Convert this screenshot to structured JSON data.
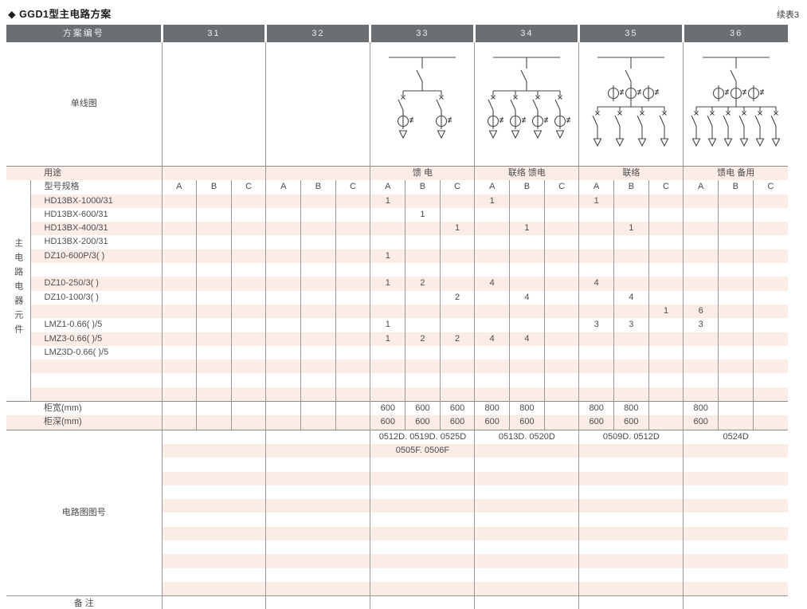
{
  "page": {
    "title": "◆ GGD1型主电路方案",
    "continuation_note": "续表3"
  },
  "table": {
    "header": {
      "scheme_label": "方案编号",
      "schemes": [
        "31",
        "32",
        "33",
        "34",
        "35",
        "36"
      ]
    },
    "diagram_row": {
      "label": "单线图"
    },
    "single_line_diagrams": [
      {
        "scheme": "31",
        "present": false,
        "branches": 0,
        "ct_per_branch": false,
        "ct_bank": 0
      },
      {
        "scheme": "32",
        "present": false,
        "branches": 0,
        "ct_per_branch": false,
        "ct_bank": 0
      },
      {
        "scheme": "33",
        "present": true,
        "branches": 2,
        "ct_per_branch": true,
        "ct_bank": 0
      },
      {
        "scheme": "34",
        "present": true,
        "branches": 4,
        "ct_per_branch": true,
        "ct_bank": 0
      },
      {
        "scheme": "35",
        "present": true,
        "branches": 4,
        "ct_per_branch": false,
        "ct_bank": 3
      },
      {
        "scheme": "36",
        "present": true,
        "branches": 6,
        "ct_per_branch": false,
        "ct_bank": 3
      }
    ],
    "usage_row": {
      "label": "用途",
      "values": [
        "",
        "",
        "馈 电",
        "联络 馈电",
        "联络",
        "馈电 备用"
      ]
    },
    "spec_header_row": {
      "label": "型号规格",
      "subcolumns": [
        "A",
        "B",
        "C"
      ]
    },
    "component_group_label": "主电路电器元件",
    "component_rows": [
      {
        "label": "HD13BX-1000/31",
        "values": [
          "",
          "",
          "",
          "",
          "",
          "",
          "1",
          "",
          "",
          "1",
          "",
          "",
          "1",
          "",
          "",
          "",
          "",
          ""
        ]
      },
      {
        "label": "HD13BX-600/31",
        "values": [
          "",
          "",
          "",
          "",
          "",
          "",
          "",
          "1",
          "",
          "",
          "",
          "",
          "",
          "",
          "",
          "",
          "",
          ""
        ]
      },
      {
        "label": "HD13BX-400/31",
        "values": [
          "",
          "",
          "",
          "",
          "",
          "",
          "",
          "",
          "1",
          "",
          "1",
          "",
          "",
          "1",
          "",
          "",
          "",
          ""
        ]
      },
      {
        "label": "HD13BX-200/31",
        "values": [
          "",
          "",
          "",
          "",
          "",
          "",
          "",
          "",
          "",
          "",
          "",
          "",
          "",
          "",
          "",
          "",
          "",
          ""
        ]
      },
      {
        "label": "DZ10-600P/3( )",
        "values": [
          "",
          "",
          "",
          "",
          "",
          "",
          "1",
          "",
          "",
          "",
          "",
          "",
          "",
          "",
          "",
          "",
          "",
          ""
        ]
      },
      {
        "label": "",
        "values": [
          "",
          "",
          "",
          "",
          "",
          "",
          "",
          "",
          "",
          "",
          "",
          "",
          "",
          "",
          "",
          "",
          "",
          ""
        ]
      },
      {
        "label": "DZ10-250/3( )",
        "values": [
          "",
          "",
          "",
          "",
          "",
          "",
          "1",
          "2",
          "",
          "4",
          "",
          "",
          "4",
          "",
          "",
          "",
          "",
          ""
        ]
      },
      {
        "label": "DZ10-100/3( )",
        "values": [
          "",
          "",
          "",
          "",
          "",
          "",
          "",
          "",
          "2",
          "",
          "4",
          "",
          "",
          "4",
          "",
          "",
          "",
          ""
        ]
      },
      {
        "label": "",
        "values": [
          "",
          "",
          "",
          "",
          "",
          "",
          "",
          "",
          "",
          "",
          "",
          "",
          "",
          "",
          "1",
          "6",
          "",
          ""
        ]
      },
      {
        "label": "LMZ1-0.66( )/5",
        "values": [
          "",
          "",
          "",
          "",
          "",
          "",
          "1",
          "",
          "",
          "",
          "",
          "",
          "3",
          "3",
          "",
          "3",
          "",
          ""
        ]
      },
      {
        "label": "LMZ3-0.66( )/5",
        "values": [
          "",
          "",
          "",
          "",
          "",
          "",
          "1",
          "2",
          "2",
          "4",
          "4",
          "",
          "",
          "",
          "",
          "",
          "",
          ""
        ]
      },
      {
        "label": "LMZ3D-0.66( )/5",
        "values": [
          "",
          "",
          "",
          "",
          "",
          "",
          "",
          "",
          "",
          "",
          "",
          "",
          "",
          "",
          "",
          "",
          "",
          ""
        ]
      },
      {
        "label": "",
        "values": [
          "",
          "",
          "",
          "",
          "",
          "",
          "",
          "",
          "",
          "",
          "",
          "",
          "",
          "",
          "",
          "",
          "",
          ""
        ]
      },
      {
        "label": "",
        "values": [
          "",
          "",
          "",
          "",
          "",
          "",
          "",
          "",
          "",
          "",
          "",
          "",
          "",
          "",
          "",
          "",
          "",
          ""
        ]
      },
      {
        "label": "",
        "values": [
          "",
          "",
          "",
          "",
          "",
          "",
          "",
          "",
          "",
          "",
          "",
          "",
          "",
          "",
          "",
          "",
          "",
          ""
        ]
      }
    ],
    "cabinet_width_row": {
      "label": "柜宽(mm)",
      "values": [
        "",
        "",
        "",
        "",
        "",
        "",
        "600",
        "600",
        "600",
        "800",
        "800",
        "",
        "800",
        "800",
        "",
        "800",
        "",
        ""
      ]
    },
    "cabinet_depth_row": {
      "label": "柜深(mm)",
      "values": [
        "",
        "",
        "",
        "",
        "",
        "",
        "600",
        "600",
        "600",
        "600",
        "600",
        "",
        "600",
        "600",
        "",
        "600",
        "",
        ""
      ]
    },
    "drawing_number_section": {
      "label": "电路图图号",
      "rows": [
        [
          "",
          "",
          "0512D. 0519D. 0525D",
          "0513D. 0520D",
          "0509D. 0512D",
          "0524D"
        ],
        [
          "",
          "",
          "0505F. 0506F",
          "",
          "",
          ""
        ],
        [
          "",
          "",
          "",
          "",
          "",
          ""
        ],
        [
          "",
          "",
          "",
          "",
          "",
          ""
        ],
        [
          "",
          "",
          "",
          "",
          "",
          ""
        ],
        [
          "",
          "",
          "",
          "",
          "",
          ""
        ],
        [
          "",
          "",
          "",
          "",
          "",
          ""
        ],
        [
          "",
          "",
          "",
          "",
          "",
          ""
        ],
        [
          "",
          "",
          "",
          "",
          "",
          ""
        ],
        [
          "",
          "",
          "",
          "",
          "",
          ""
        ],
        [
          "",
          "",
          "",
          "",
          "",
          ""
        ],
        [
          "",
          "",
          "",
          "",
          "",
          ""
        ]
      ]
    },
    "remarks_row": {
      "label": "备 注",
      "values": [
        "",
        "",
        "",
        "",
        "",
        ""
      ]
    },
    "colors": {
      "header_bg": "#6b6f72",
      "stripe_pink": "#fcece8",
      "grid_line": "#989898",
      "section_line": "#8a8a8a"
    }
  }
}
